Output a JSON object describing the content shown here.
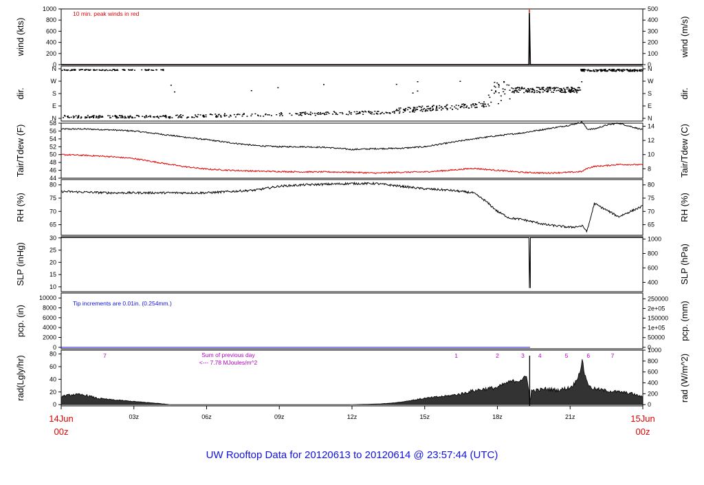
{
  "title": "UW Rooftop Data for 20120613  to  20120614 @ 23:57:44  (UTC)",
  "colors": {
    "frame": "#000000",
    "red": "#e00000",
    "blue": "#1010e0",
    "magenta": "#b000c0"
  },
  "x_axis": {
    "hours": [
      0,
      3,
      6,
      9,
      12,
      15,
      18,
      21,
      24
    ],
    "labels": [
      "",
      "03z",
      "06z",
      "09z",
      "12z",
      "15z",
      "18z",
      "21z",
      ""
    ],
    "start_day": "14Jun",
    "start_hour": "00z",
    "end_day": "15Jun",
    "end_hour": "00z"
  },
  "panels": {
    "wind": {
      "left_label": "wind (kts)",
      "right_label": "wind (m/s)",
      "left_ticks": [
        "0",
        "200",
        "400",
        "600",
        "800",
        "1000"
      ],
      "right_ticks": [
        "0",
        "100",
        "200",
        "300",
        "400",
        "500"
      ],
      "note": "10 min. peak winds in red"
    },
    "dir": {
      "left_label": "dir.",
      "right_label": "dir.",
      "ticks": [
        "N",
        "E",
        "S",
        "W",
        "N"
      ]
    },
    "temp": {
      "left_label": "Tair/Tdew (F)",
      "right_label": "Tair/Tdew (C)",
      "left_ticks": [
        "44",
        "46",
        "48",
        "50",
        "52",
        "54",
        "56",
        "58"
      ],
      "right_ticks": [
        "8",
        "10",
        "12",
        "14"
      ]
    },
    "rh": {
      "left_label": "RH (%)",
      "right_label": "RH (%)",
      "left_ticks": [
        "65",
        "70",
        "75",
        "80"
      ],
      "right_ticks": [
        "65",
        "70",
        "75",
        "80"
      ]
    },
    "slp": {
      "left_label": "SLP (inHg)",
      "right_label": "SLP (hPa)",
      "left_ticks": [
        "10",
        "15",
        "20",
        "25",
        "30"
      ],
      "right_ticks": [
        "400",
        "600",
        "800",
        "1000"
      ]
    },
    "pcp": {
      "left_label": "pcp. (in)",
      "right_label": "pcp. (mm)",
      "left_ticks": [
        "0",
        "2000",
        "4000",
        "6000",
        "8000",
        "10000"
      ],
      "right_ticks": [
        "0",
        "50000",
        "1e+05",
        "150000",
        "2e+05",
        "250000"
      ],
      "note": "Tip increments are 0.01in. (0.254mm.)"
    },
    "rad": {
      "left_label": "rad(Lgly/hr)",
      "right_label": "rad (W/m^2)",
      "left_ticks": [
        "0",
        "20",
        "40",
        "60",
        "80"
      ],
      "right_ticks": [
        "0",
        "200",
        "400",
        "600",
        "800",
        "1000"
      ],
      "note_line1": "Sum of previous day",
      "note_line2": "<--- 7.78 MJoules/m^2",
      "markers": [
        "7",
        "1",
        "2",
        "3",
        "4",
        "5",
        "6",
        "7"
      ]
    }
  },
  "chart_data": [
    {
      "type": "line",
      "panel": "wind",
      "ylabel": "wind (kts)",
      "y2label": "wind (m/s)",
      "ylim": [
        0,
        1000
      ],
      "y2lim": [
        0,
        500
      ],
      "x_hours": [
        0,
        19.3,
        19.32,
        19.36,
        19.4,
        24
      ],
      "series": [
        {
          "name": "10 min. peak winds",
          "color": "red",
          "values": [
            3,
            3,
            1010,
            3,
            3,
            3
          ]
        },
        {
          "color": "black",
          "values": [
            1,
            1,
            930,
            1,
            1,
            1
          ]
        }
      ]
    },
    {
      "type": "scatter",
      "panel": "dir",
      "ylabel": "dir.",
      "ylim": [
        "N",
        "N"
      ],
      "ticks": [
        "N",
        "E",
        "S",
        "W",
        "N"
      ],
      "segments_hours": [
        {
          "from": 0,
          "to": 3.5,
          "dir": [
            "N (north)",
            "N (south)"
          ]
        },
        {
          "from": 3.5,
          "to": 14,
          "dir": [
            "N",
            "E"
          ]
        },
        {
          "from": 14,
          "to": 17.5,
          "dir": [
            "E",
            "S"
          ]
        },
        {
          "from": 18.5,
          "to": 21.5,
          "dir": [
            "S",
            "W"
          ]
        },
        {
          "from": 21.5,
          "to": 24,
          "dir": [
            "N"
          ]
        }
      ]
    },
    {
      "type": "line",
      "panel": "temp",
      "ylabel": "Tair/Tdew (F)",
      "y2label": "Tair/Tdew (C)",
      "ylim": [
        44,
        58
      ],
      "y2lim": [
        6.67,
        14.44
      ],
      "x_hours": [
        0,
        1,
        2,
        3,
        4,
        5,
        6,
        7,
        8,
        9,
        10,
        11,
        12,
        13,
        14,
        15,
        16,
        17,
        18,
        19,
        20,
        21,
        21.5,
        21.7,
        22,
        22.5,
        23,
        24
      ],
      "series": [
        {
          "name": "Tair",
          "color": "black",
          "values": [
            56.5,
            56.5,
            56.3,
            56.0,
            55.3,
            54.5,
            53.8,
            53.0,
            52.3,
            52.0,
            52.0,
            51.8,
            51.3,
            51.5,
            51.6,
            52.0,
            53.0,
            54.0,
            54.8,
            55.5,
            56.5,
            57.5,
            58.3,
            56.5,
            56.5,
            57.5,
            58.0,
            56.3
          ]
        },
        {
          "name": "Tdew",
          "color": "red",
          "values": [
            50.0,
            49.8,
            49.5,
            49.0,
            48.0,
            47.0,
            46.3,
            46.0,
            45.8,
            45.7,
            45.6,
            45.6,
            45.5,
            45.3,
            45.5,
            45.6,
            46.0,
            46.5,
            46.0,
            45.5,
            45.3,
            45.5,
            45.7,
            46.5,
            47.0,
            47.2,
            47.5,
            47.4
          ]
        }
      ]
    },
    {
      "type": "line",
      "panel": "rh",
      "ylabel": "RH (%)",
      "y2label": "RH (%)",
      "ylim": [
        61,
        82
      ],
      "x_hours": [
        0,
        2,
        4,
        6,
        8,
        9,
        10,
        12,
        13,
        14,
        15,
        16,
        17,
        17.5,
        18,
        18.5,
        19,
        20,
        21,
        21.5,
        21.7,
        22,
        22.5,
        23,
        24
      ],
      "series": [
        {
          "name": "RH",
          "color": "black",
          "values": [
            77.5,
            77.0,
            77.0,
            77.0,
            78.0,
            79.5,
            80.0,
            80.5,
            80.5,
            79.5,
            78.5,
            78.0,
            77.0,
            74.0,
            70.0,
            67.5,
            67.0,
            65.0,
            64.0,
            64.5,
            62.5,
            73.0,
            70.5,
            68.0,
            72.0
          ]
        }
      ]
    },
    {
      "type": "line",
      "panel": "slp",
      "ylabel": "SLP (inHg)",
      "y2label": "SLP (hPa)",
      "ylim": [
        8,
        30.5
      ],
      "y2lim": [
        271,
        1033
      ],
      "x_hours": [
        0,
        19.3,
        19.32,
        19.36,
        19.42,
        24
      ],
      "series": [
        {
          "name": "SLP",
          "color": "black",
          "values": [
            30.1,
            30.1,
            9.5,
            30.1,
            30.1,
            30.1
          ]
        }
      ]
    },
    {
      "type": "line",
      "panel": "pcp",
      "ylabel": "pcp. (in)",
      "y2label": "pcp. (mm)",
      "ylim": [
        -300,
        11000
      ],
      "y2lim": [
        -7620,
        279400
      ],
      "x_hours": [
        0,
        19.35
      ],
      "series": [
        {
          "name": "pcp",
          "color": "blue",
          "values": [
            0,
            0
          ]
        }
      ]
    },
    {
      "type": "area",
      "panel": "rad",
      "ylabel": "rad(Lgly/hr)",
      "y2label": "rad (W/m^2)",
      "ylim": [
        -2,
        86
      ],
      "y2lim": [
        -23,
        1000
      ],
      "x_hours": [
        0,
        0.5,
        1,
        1.5,
        2,
        3,
        4,
        4.5,
        11.9,
        12.5,
        13,
        13.5,
        14,
        14.5,
        15,
        15.5,
        16,
        16.5,
        17,
        17.5,
        18,
        18.3,
        18.6,
        18.9,
        19.2,
        19.3,
        19.35,
        19.4,
        19.7,
        20,
        20.5,
        21,
        21.2,
        21.4,
        21.5,
        21.6,
        21.8,
        22,
        22.5,
        23,
        23.5,
        24
      ],
      "series": [
        {
          "name": "rad",
          "color": "black",
          "values": [
            13,
            16,
            15,
            10,
            8,
            5,
            2,
            0,
            0,
            0.5,
            1,
            2,
            4,
            7,
            10,
            12,
            14,
            17,
            22,
            25,
            27,
            33,
            37,
            38,
            44,
            25,
            1,
            22,
            23,
            25,
            23,
            27,
            34,
            51,
            70,
            48,
            28,
            25,
            22,
            20,
            18,
            12
          ]
        }
      ]
    }
  ]
}
